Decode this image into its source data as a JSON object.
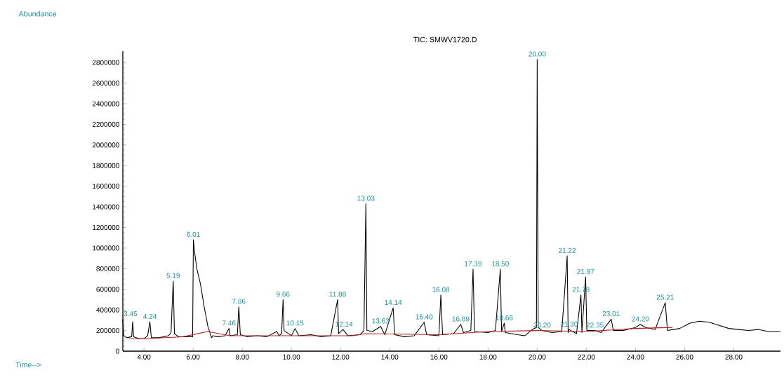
{
  "chart_data": {
    "type": "line",
    "title": "TIC: SMWV1720.D",
    "xlim": [
      3.14,
      29.9
    ],
    "ylim": [
      0,
      2910000
    ],
    "xticks": [
      {
        "value": 4,
        "label": "4.00"
      },
      {
        "value": 6,
        "label": "6.00"
      },
      {
        "value": 8,
        "label": "8.00"
      },
      {
        "value": 10,
        "label": "10.00"
      },
      {
        "value": 12,
        "label": "12.00"
      },
      {
        "value": 14,
        "label": "14.00"
      },
      {
        "value": 16,
        "label": "16.00"
      },
      {
        "value": 18,
        "label": "18.00"
      },
      {
        "value": 20,
        "label": "20.00"
      },
      {
        "value": 22,
        "label": "22.00"
      },
      {
        "value": 24,
        "label": "24.00"
      },
      {
        "value": 26,
        "label": "26.00"
      },
      {
        "value": 28,
        "label": "28.00"
      }
    ],
    "yticks": [
      0,
      200000,
      400000,
      600000,
      800000,
      1000000,
      1200000,
      1400000,
      1600000,
      1800000,
      2000000,
      2200000,
      2400000,
      2600000,
      2800000
    ],
    "series": [
      {
        "color": "#000000",
        "x": [
          3.14,
          3.18,
          3.3,
          3.5,
          3.54,
          3.58,
          3.8,
          4.0,
          4.15,
          4.24,
          4.3,
          4.6,
          5.0,
          5.1,
          5.19,
          5.24,
          5.4,
          5.98,
          6.01,
          6.05,
          6.15,
          6.3,
          6.45,
          6.6,
          6.75,
          6.8,
          7.0,
          7.3,
          7.46,
          7.5,
          7.8,
          7.86,
          7.92,
          8.2,
          8.6,
          9.0,
          9.4,
          9.5,
          9.6,
          9.66,
          9.7,
          10.0,
          10.15,
          10.3,
          10.8,
          11.2,
          11.6,
          11.88,
          11.92,
          12.1,
          12.3,
          12.8,
          12.95,
          13.03,
          13.07,
          13.3,
          13.63,
          13.8,
          14.14,
          14.2,
          14.6,
          15.0,
          15.4,
          15.5,
          16.0,
          16.08,
          16.15,
          16.6,
          16.89,
          17.0,
          17.3,
          17.39,
          17.45,
          18.0,
          18.3,
          18.5,
          18.55,
          18.66,
          18.7,
          19.2,
          19.5,
          19.8,
          19.97,
          20.0,
          20.04,
          20.2,
          20.6,
          21.0,
          21.22,
          21.26,
          21.3,
          21.6,
          21.78,
          21.82,
          21.97,
          22.02,
          22.35,
          22.6,
          23.01,
          23.1,
          23.5,
          24.0,
          24.2,
          24.4,
          24.8,
          25.21,
          25.3,
          25.8,
          26.2,
          26.6,
          27.0,
          27.4,
          27.8,
          28.2,
          28.6,
          29.0,
          29.4,
          29.9
        ],
        "values": [
          310000,
          150000,
          130000,
          140000,
          285000,
          140000,
          120000,
          120000,
          150000,
          285000,
          130000,
          130000,
          150000,
          180000,
          680000,
          170000,
          140000,
          140000,
          1080000,
          980000,
          800000,
          650000,
          430000,
          240000,
          130000,
          150000,
          140000,
          150000,
          220000,
          150000,
          160000,
          430000,
          160000,
          140000,
          150000,
          140000,
          190000,
          150000,
          170000,
          500000,
          200000,
          150000,
          220000,
          150000,
          160000,
          140000,
          150000,
          500000,
          170000,
          210000,
          150000,
          160000,
          200000,
          1430000,
          200000,
          190000,
          240000,
          160000,
          420000,
          160000,
          140000,
          150000,
          280000,
          160000,
          150000,
          545000,
          160000,
          170000,
          260000,
          180000,
          200000,
          795000,
          190000,
          180000,
          200000,
          795000,
          190000,
          270000,
          180000,
          160000,
          150000,
          210000,
          230000,
          2830000,
          230000,
          200000,
          180000,
          190000,
          925000,
          180000,
          210000,
          170000,
          545000,
          180000,
          720000,
          200000,
          200000,
          180000,
          310000,
          200000,
          200000,
          230000,
          260000,
          230000,
          210000,
          470000,
          200000,
          220000,
          270000,
          290000,
          280000,
          250000,
          220000,
          210000,
          200000,
          210000,
          190000,
          190000
        ]
      },
      {
        "color": "#b22222",
        "x": [
          3.4,
          4.0,
          5.6,
          6.6,
          7.5,
          12.5,
          13.0,
          16.0,
          18.0,
          20.0,
          22.0,
          24.0,
          25.5
        ],
        "values": [
          120000,
          120000,
          140000,
          190000,
          150000,
          150000,
          170000,
          160000,
          190000,
          200000,
          190000,
          220000,
          230000
        ]
      }
    ],
    "annotations": [
      "Abundance",
      "Time-->",
      {
        "text": "3.45",
        "x": 3.45,
        "y": 310000
      },
      {
        "text": "4.24",
        "x": 4.24,
        "y": 285000
      },
      {
        "text": "5.19",
        "x": 5.19,
        "y": 680000
      },
      {
        "text": "6.01",
        "x": 6.01,
        "y": 1080000
      },
      {
        "text": "7.46",
        "x": 7.46,
        "y": 220000
      },
      {
        "text": "7.86",
        "x": 7.86,
        "y": 430000
      },
      {
        "text": "9.66",
        "x": 9.66,
        "y": 500000
      },
      {
        "text": "10.15",
        "x": 10.15,
        "y": 220000
      },
      {
        "text": "11.88",
        "x": 11.88,
        "y": 500000
      },
      {
        "text": "12.14",
        "x": 12.14,
        "y": 210000
      },
      {
        "text": "13.03",
        "x": 13.03,
        "y": 1430000
      },
      {
        "text": "13.63",
        "x": 13.63,
        "y": 240000
      },
      {
        "text": "14.14",
        "x": 14.14,
        "y": 420000
      },
      {
        "text": "15.40",
        "x": 15.4,
        "y": 280000
      },
      {
        "text": "16.08",
        "x": 16.08,
        "y": 545000
      },
      {
        "text": "16.89",
        "x": 16.89,
        "y": 260000
      },
      {
        "text": "17.39",
        "x": 17.39,
        "y": 795000
      },
      {
        "text": "18.50",
        "x": 18.5,
        "y": 795000
      },
      {
        "text": "18.66",
        "x": 18.66,
        "y": 270000
      },
      {
        "text": "20.00",
        "x": 20.0,
        "y": 2830000
      },
      {
        "text": "20.20",
        "x": 20.2,
        "y": 200000
      },
      {
        "text": "21.22",
        "x": 21.22,
        "y": 925000
      },
      {
        "text": "21.30",
        "x": 21.3,
        "y": 210000
      },
      {
        "text": "21.78",
        "x": 21.78,
        "y": 545000
      },
      {
        "text": "21.97",
        "x": 21.97,
        "y": 720000
      },
      {
        "text": "22.35",
        "x": 22.35,
        "y": 200000
      },
      {
        "text": "23.01",
        "x": 23.01,
        "y": 310000
      },
      {
        "text": "24.20",
        "x": 24.2,
        "y": 260000
      },
      {
        "text": "25.21",
        "x": 25.21,
        "y": 470000
      }
    ]
  }
}
